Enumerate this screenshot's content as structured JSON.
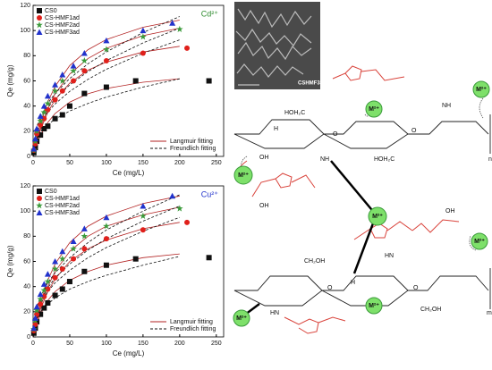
{
  "chart_data": [
    {
      "type": "scatter",
      "annotation": "Cd²⁺",
      "annotation_color": "#2e8b2e",
      "x_label": "Ce (mg/L)",
      "y_label": "Qe (mg/g)",
      "xlim": [
        0,
        260
      ],
      "xticks": [
        0,
        50,
        100,
        150,
        200,
        250
      ],
      "ylim": [
        0,
        120
      ],
      "yticks": [
        0,
        20,
        40,
        60,
        80,
        100,
        120
      ],
      "series": [
        {
          "name": "CS0",
          "color": "#111111",
          "marker": "square",
          "x": [
            1,
            3,
            5,
            10,
            15,
            20,
            30,
            40,
            50,
            70,
            100,
            140,
            240
          ],
          "values": [
            3,
            7,
            12,
            17,
            22,
            24,
            30,
            33,
            40,
            50,
            55,
            60,
            60
          ]
        },
        {
          "name": "CS-HMF1ad",
          "color": "#e0201b",
          "marker": "circle",
          "x": [
            1,
            3,
            5,
            10,
            15,
            20,
            30,
            40,
            55,
            70,
            100,
            150,
            210
          ],
          "values": [
            5,
            10,
            18,
            25,
            30,
            37,
            45,
            52,
            60,
            68,
            76,
            82,
            86
          ]
        },
        {
          "name": "CS-HMF2ad",
          "color": "#3a9a3a",
          "marker": "star",
          "x": [
            1,
            3,
            5,
            10,
            15,
            20,
            30,
            40,
            55,
            70,
            100,
            150,
            200
          ],
          "values": [
            5,
            12,
            20,
            28,
            35,
            42,
            52,
            60,
            68,
            76,
            85,
            95,
            101
          ]
        },
        {
          "name": "CS-HMF3ad",
          "color": "#2233cc",
          "marker": "triangle",
          "x": [
            1,
            3,
            5,
            10,
            15,
            20,
            30,
            40,
            55,
            70,
            100,
            150,
            190
          ],
          "values": [
            6,
            14,
            22,
            32,
            40,
            48,
            57,
            65,
            72,
            82,
            92,
            100,
            106
          ]
        }
      ],
      "fit_x": [
        0,
        5,
        10,
        20,
        30,
        50,
        75,
        100,
        150,
        200
      ],
      "fits": [
        {
          "name": "Langmuir fitting",
          "color": "#b22222",
          "dash": false,
          "curves": [
            [
              0,
              9.4,
              16.6,
              27,
              34.1,
              43.2,
              49.8,
              54,
              58.9,
              61.7
            ],
            [
              0,
              11.7,
              21,
              35,
              45,
              58.3,
              68.5,
              75,
              82.9,
              87.5
            ],
            [
              0,
              12.4,
              22.5,
              38.2,
              49.7,
              65.5,
              77.8,
              85.9,
              95.9,
              101.9
            ],
            [
              0,
              14.4,
              26,
              43.3,
              55.7,
              72.2,
              84.8,
              92.9,
              102.6,
              108.3
            ]
          ]
        },
        {
          "name": "Freundlich fitting",
          "color": "#111111",
          "dash": true,
          "curves": [
            [
              0,
              14.9,
              19.4,
              25.3,
              29.6,
              36.1,
              42.1,
              47.1,
              55.1,
              61.6
            ],
            [
              0,
              19.7,
              26.3,
              35.2,
              41.7,
              51.7,
              61.3,
              69.2,
              82,
              92.6
            ],
            [
              0,
              21.7,
              28.9,
              38.7,
              45.9,
              56.9,
              67.4,
              76.1,
              90.2,
              101.9
            ],
            [
              0,
              23.6,
              31.6,
              42.2,
              50,
              62,
              73.6,
              83,
              98.4,
              111.1
            ]
          ]
        }
      ]
    },
    {
      "type": "scatter",
      "annotation": "Cu²⁺",
      "annotation_color": "#2233cc",
      "x_label": "Ce (mg/L)",
      "y_label": "Qe (mg/g)",
      "xlim": [
        0,
        260
      ],
      "xticks": [
        0,
        50,
        100,
        150,
        200,
        250
      ],
      "ylim": [
        0,
        120
      ],
      "yticks": [
        0,
        20,
        40,
        60,
        80,
        100,
        120
      ],
      "series": [
        {
          "name": "CS0",
          "color": "#111111",
          "marker": "square",
          "x": [
            1,
            3,
            5,
            10,
            15,
            20,
            30,
            40,
            50,
            70,
            100,
            140,
            240
          ],
          "values": [
            3,
            7,
            12,
            18,
            23,
            27,
            33,
            38,
            44,
            52,
            57,
            62,
            63
          ]
        },
        {
          "name": "CS-HMF1ad",
          "color": "#e0201b",
          "marker": "circle",
          "x": [
            1,
            3,
            5,
            10,
            15,
            20,
            30,
            40,
            55,
            70,
            100,
            150,
            210
          ],
          "values": [
            5,
            10,
            18,
            26,
            32,
            38,
            47,
            54,
            62,
            70,
            78,
            85,
            91
          ]
        },
        {
          "name": "CS-HMF2ad",
          "color": "#3a9a3a",
          "marker": "star",
          "x": [
            1,
            3,
            5,
            10,
            15,
            20,
            30,
            40,
            55,
            70,
            100,
            150,
            200
          ],
          "values": [
            6,
            13,
            21,
            30,
            37,
            44,
            54,
            62,
            70,
            80,
            88,
            96,
            102
          ]
        },
        {
          "name": "CS-HMF3ad",
          "color": "#2233cc",
          "marker": "triangle",
          "x": [
            1,
            3,
            5,
            10,
            15,
            20,
            30,
            40,
            55,
            70,
            100,
            150,
            190
          ],
          "values": [
            7,
            15,
            24,
            34,
            42,
            50,
            60,
            68,
            76,
            86,
            95,
            104,
            112
          ]
        }
      ],
      "fit_x": [
        0,
        5,
        10,
        20,
        30,
        50,
        75,
        100,
        150,
        200
      ],
      "fits": [
        {
          "name": "Langmuir fitting",
          "color": "#b22222",
          "dash": false,
          "curves": [
            [
              0,
              10,
              18,
              29,
              36,
              45,
              52,
              57,
              63,
              66
            ],
            [
              0,
              12,
              22,
              36,
              46,
              60,
              70,
              77,
              86,
              91
            ],
            [
              0,
              13,
              24,
              40,
              52,
              68,
              80,
              88,
              97,
              103
            ],
            [
              0,
              15,
              27,
              45,
              58,
              75,
              88,
              96,
              106,
              112
            ]
          ]
        },
        {
          "name": "Freundlich fitting",
          "color": "#111111",
          "dash": true,
          "curves": [
            [
              0,
              15,
              20,
              26,
              31,
              38,
              44,
              49,
              57,
              64
            ],
            [
              0,
              20,
              27,
              36,
              43,
              53,
              63,
              71,
              84,
              95
            ],
            [
              0,
              22,
              29,
              39,
              47,
              58,
              69,
              78,
              92,
              104
            ],
            [
              0,
              24,
              32,
              43,
              51,
              63,
              75,
              85,
              100,
              113
            ]
          ]
        }
      ]
    }
  ],
  "image": {
    "caption": "CSHMF3ad"
  },
  "diagram": {
    "metal_ion": "M²⁺",
    "hoh2c": "HOH₂C",
    "ch2oh": "CH₂OH",
    "oh": "OH",
    "h": "H",
    "nh": "NH",
    "hn": "HN",
    "o": "O",
    "n": "n",
    "m": "m"
  }
}
